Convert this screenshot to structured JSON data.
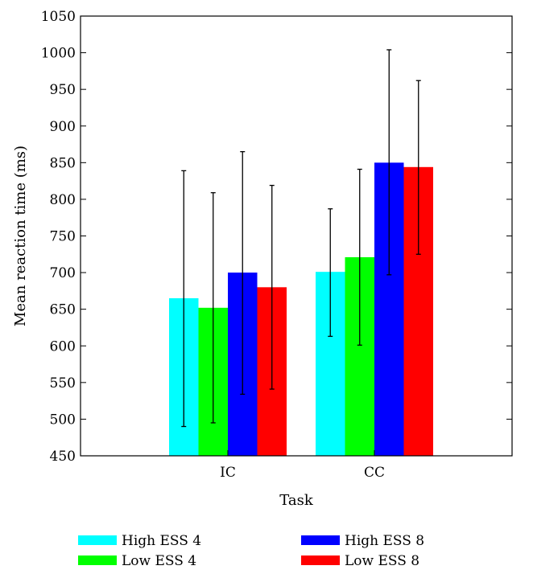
{
  "chart_data": {
    "type": "bar",
    "title": "",
    "xlabel": "Task",
    "ylabel": "Mean reaction time (ms)",
    "categories": [
      "IC",
      "CC"
    ],
    "ylim": [
      450,
      1050
    ],
    "yticks": [
      450,
      500,
      550,
      600,
      650,
      700,
      750,
      800,
      850,
      900,
      950,
      1000,
      1050
    ],
    "legend_position": "bottom",
    "series": [
      {
        "name": "High ESS 4",
        "color": "#00ffff",
        "values": [
          665,
          701
        ],
        "err_low": [
          490,
          613
        ],
        "err_high": [
          839,
          787
        ]
      },
      {
        "name": "Low ESS 4",
        "color": "#00ff00",
        "values": [
          652,
          721
        ],
        "err_low": [
          495,
          601
        ],
        "err_high": [
          809,
          841
        ]
      },
      {
        "name": "High ESS 8",
        "color": "#0000ff",
        "values": [
          700,
          850
        ],
        "err_low": [
          534,
          697
        ],
        "err_high": [
          865,
          1004
        ]
      },
      {
        "name": "Low ESS 8",
        "color": "#ff0000",
        "values": [
          680,
          844
        ],
        "err_low": [
          541,
          725
        ],
        "err_high": [
          819,
          962
        ]
      }
    ]
  }
}
